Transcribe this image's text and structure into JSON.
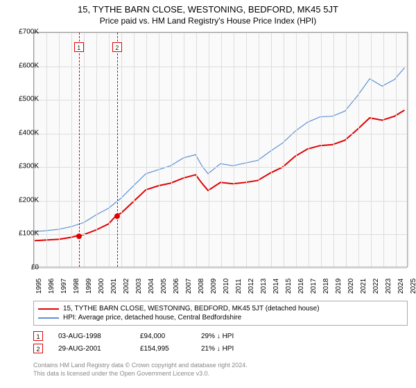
{
  "title": "15, TYTHE BARN CLOSE, WESTONING, BEDFORD, MK45 5JT",
  "subtitle": "Price paid vs. HM Land Registry's House Price Index (HPI)",
  "chart": {
    "type": "line",
    "background_color": "#fafafa",
    "grid_color": "#dddddd",
    "x_years": [
      1995,
      1996,
      1997,
      1998,
      1999,
      2000,
      2001,
      2002,
      2003,
      2004,
      2005,
      2006,
      2007,
      2008,
      2009,
      2010,
      2011,
      2012,
      2013,
      2014,
      2015,
      2016,
      2017,
      2018,
      2019,
      2020,
      2021,
      2022,
      2023,
      2024,
      2025
    ],
    "xlim": [
      1995,
      2025
    ],
    "ylim": [
      0,
      700000
    ],
    "ytick_step": 100000,
    "yticks": [
      "£0",
      "£100K",
      "£200K",
      "£300K",
      "£400K",
      "£500K",
      "£600K",
      "£700K"
    ],
    "series": [
      {
        "name": "price_paid",
        "color": "#e00000",
        "width": 2,
        "points": [
          [
            1995,
            78000
          ],
          [
            1996,
            80000
          ],
          [
            1997,
            82000
          ],
          [
            1998,
            88000
          ],
          [
            1998.6,
            94000
          ],
          [
            1999,
            96000
          ],
          [
            2000,
            110000
          ],
          [
            2001,
            128000
          ],
          [
            2001.66,
            154995
          ],
          [
            2002,
            160000
          ],
          [
            2003,
            195000
          ],
          [
            2004,
            230000
          ],
          [
            2005,
            242000
          ],
          [
            2006,
            250000
          ],
          [
            2007,
            265000
          ],
          [
            2008,
            275000
          ],
          [
            2008.5,
            250000
          ],
          [
            2009,
            228000
          ],
          [
            2010,
            252000
          ],
          [
            2011,
            248000
          ],
          [
            2012,
            252000
          ],
          [
            2013,
            258000
          ],
          [
            2014,
            280000
          ],
          [
            2015,
            298000
          ],
          [
            2016,
            330000
          ],
          [
            2017,
            352000
          ],
          [
            2018,
            362000
          ],
          [
            2019,
            365000
          ],
          [
            2020,
            378000
          ],
          [
            2021,
            410000
          ],
          [
            2022,
            445000
          ],
          [
            2023,
            438000
          ],
          [
            2024,
            450000
          ],
          [
            2024.8,
            468000
          ]
        ]
      },
      {
        "name": "hpi",
        "color": "#5b8fd6",
        "width": 1.2,
        "points": [
          [
            1995,
            105000
          ],
          [
            1996,
            108000
          ],
          [
            1997,
            112000
          ],
          [
            1998,
            120000
          ],
          [
            1999,
            132000
          ],
          [
            2000,
            155000
          ],
          [
            2001,
            175000
          ],
          [
            2002,
            205000
          ],
          [
            2003,
            242000
          ],
          [
            2004,
            278000
          ],
          [
            2005,
            290000
          ],
          [
            2006,
            302000
          ],
          [
            2007,
            325000
          ],
          [
            2008,
            335000
          ],
          [
            2008.5,
            302000
          ],
          [
            2009,
            278000
          ],
          [
            2010,
            308000
          ],
          [
            2011,
            302000
          ],
          [
            2012,
            310000
          ],
          [
            2013,
            318000
          ],
          [
            2014,
            345000
          ],
          [
            2015,
            370000
          ],
          [
            2016,
            405000
          ],
          [
            2017,
            432000
          ],
          [
            2018,
            448000
          ],
          [
            2019,
            450000
          ],
          [
            2020,
            465000
          ],
          [
            2021,
            510000
          ],
          [
            2022,
            562000
          ],
          [
            2023,
            540000
          ],
          [
            2024,
            560000
          ],
          [
            2024.8,
            595000
          ]
        ]
      }
    ],
    "markers": [
      {
        "id": "1",
        "x": 1998.6,
        "y": 94000
      },
      {
        "id": "2",
        "x": 2001.66,
        "y": 154995
      }
    ]
  },
  "legend": {
    "items": [
      {
        "color": "#e00000",
        "label": "15, TYTHE BARN CLOSE, WESTONING, BEDFORD, MK45 5JT (detached house)"
      },
      {
        "color": "#5b8fd6",
        "label": "HPI: Average price, detached house, Central Bedfordshire"
      }
    ]
  },
  "annotations": [
    {
      "id": "1",
      "date": "03-AUG-1998",
      "price": "£94,000",
      "delta": "29% ↓ HPI"
    },
    {
      "id": "2",
      "date": "29-AUG-2001",
      "price": "£154,995",
      "delta": "21% ↓ HPI"
    }
  ],
  "footer": {
    "line1": "Contains HM Land Registry data © Crown copyright and database right 2024.",
    "line2": "This data is licensed under the Open Government Licence v3.0."
  }
}
